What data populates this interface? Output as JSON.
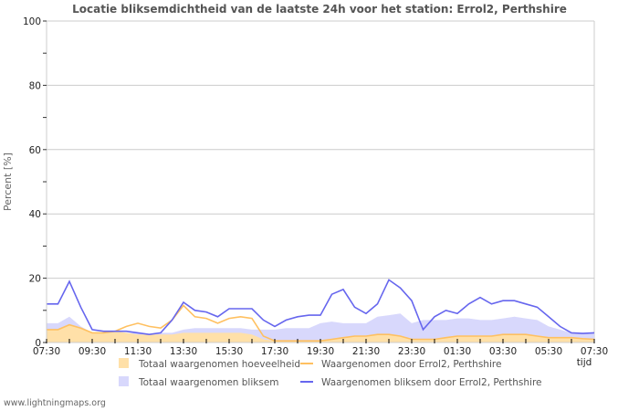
{
  "chart_data": {
    "type": "line",
    "title": "Locatie bliksemdichtheid van de laatste 24h voor het station: Errol2, Perthshire",
    "xlabel": "tijd",
    "ylabel": "Percent   [%]",
    "ylim": [
      0,
      100
    ],
    "yticks": [
      "0",
      "20",
      "40",
      "60",
      "80",
      "100"
    ],
    "xticks": [
      "07:30",
      "09:30",
      "11:30",
      "13:30",
      "15:30",
      "17:30",
      "19:30",
      "21:30",
      "23:30",
      "01:30",
      "03:30",
      "05:30",
      "07:30"
    ],
    "grid": true,
    "legend_position": "bottom",
    "x": [
      "07:30",
      "08:00",
      "08:30",
      "09:00",
      "09:30",
      "10:00",
      "10:30",
      "11:00",
      "11:30",
      "12:00",
      "12:30",
      "13:00",
      "13:30",
      "14:00",
      "14:30",
      "15:00",
      "15:30",
      "16:00",
      "16:30",
      "17:00",
      "17:30",
      "18:00",
      "18:30",
      "19:00",
      "19:30",
      "20:00",
      "20:30",
      "21:00",
      "21:30",
      "22:00",
      "22:30",
      "23:00",
      "23:30",
      "00:00",
      "00:30",
      "01:00",
      "01:30",
      "02:00",
      "02:30",
      "03:00",
      "03:30",
      "04:00",
      "04:30",
      "05:00",
      "05:30",
      "06:00",
      "06:30",
      "07:00",
      "07:30"
    ],
    "series": [
      {
        "name": "Totaal waargenomen hoeveelheid",
        "kind": "area",
        "color": "#ffe0a8",
        "values": [
          4,
          4,
          5.5,
          4.5,
          3,
          3,
          3.5,
          3,
          2.5,
          2.5,
          2.5,
          2.5,
          3,
          3,
          3,
          3,
          3,
          3,
          2.5,
          1,
          0.5,
          0.5,
          0.5,
          0.5,
          0.5,
          1,
          1.5,
          2,
          2,
          2.5,
          2.5,
          2,
          1,
          1,
          1,
          1.5,
          2,
          2,
          2,
          2,
          2.5,
          2.5,
          2.5,
          2,
          1.5,
          1.5,
          1.5,
          1.2,
          1
        ]
      },
      {
        "name": "Totaal waargenomen bliksem",
        "kind": "area",
        "color": "#d8d8fc",
        "values": [
          6,
          6,
          8,
          5,
          3,
          3,
          3,
          3,
          3,
          2.5,
          3,
          3,
          4,
          4.5,
          4.5,
          4.5,
          4.5,
          4.5,
          4,
          4,
          4,
          4.5,
          4.5,
          4.5,
          6,
          6.5,
          6,
          6,
          6,
          8,
          8.5,
          9,
          6,
          7,
          7,
          7,
          7.5,
          7.5,
          7,
          7,
          7.5,
          8,
          7.5,
          7,
          5,
          4,
          3,
          3,
          3
        ]
      },
      {
        "name": "Waargenomen door Errol2, Perthshire",
        "kind": "line",
        "color": "#ffc060",
        "values": [
          4,
          4,
          5.5,
          4.5,
          3,
          3,
          3.5,
          5,
          6,
          5,
          4.5,
          7,
          11.5,
          8,
          7.5,
          6,
          7.5,
          8,
          7.5,
          2,
          0.5,
          0.5,
          0.5,
          0.5,
          0.5,
          1,
          1.5,
          2,
          2,
          2.5,
          2.5,
          2,
          1,
          1,
          1,
          1.5,
          2,
          2,
          2,
          2,
          2.5,
          2.5,
          2.5,
          2,
          1.5,
          1.5,
          1.5,
          1.2,
          1
        ]
      },
      {
        "name": "Waargenomen bliksem door Errol2, Perthshire",
        "kind": "line",
        "color": "#6666ee",
        "values": [
          12,
          12,
          19,
          11,
          4,
          3.5,
          3.5,
          3.5,
          3,
          2.5,
          3,
          7,
          12.5,
          10,
          9.5,
          8,
          10.5,
          10.5,
          10.5,
          7,
          5,
          7,
          8,
          8.5,
          8.5,
          15,
          16.5,
          11,
          9,
          12,
          19.5,
          17,
          13,
          4,
          8,
          10,
          9,
          12,
          14,
          12,
          13,
          13,
          12,
          11,
          8,
          5,
          3,
          2.8,
          3
        ]
      }
    ]
  },
  "legend": {
    "items": [
      {
        "label": "Totaal waargenomen hoeveelheid",
        "swatch": "box",
        "color": "#ffe0a8"
      },
      {
        "label": "Waargenomen door Errol2, Perthshire",
        "swatch": "line",
        "color": "#ffc060"
      },
      {
        "label": "Totaal waargenomen bliksem",
        "swatch": "box",
        "color": "#d8d8fc"
      },
      {
        "label": "Waargenomen bliksem door Errol2, Perthshire",
        "swatch": "line",
        "color": "#6666ee"
      }
    ]
  },
  "footer": {
    "text": "www.lightningmaps.org"
  }
}
